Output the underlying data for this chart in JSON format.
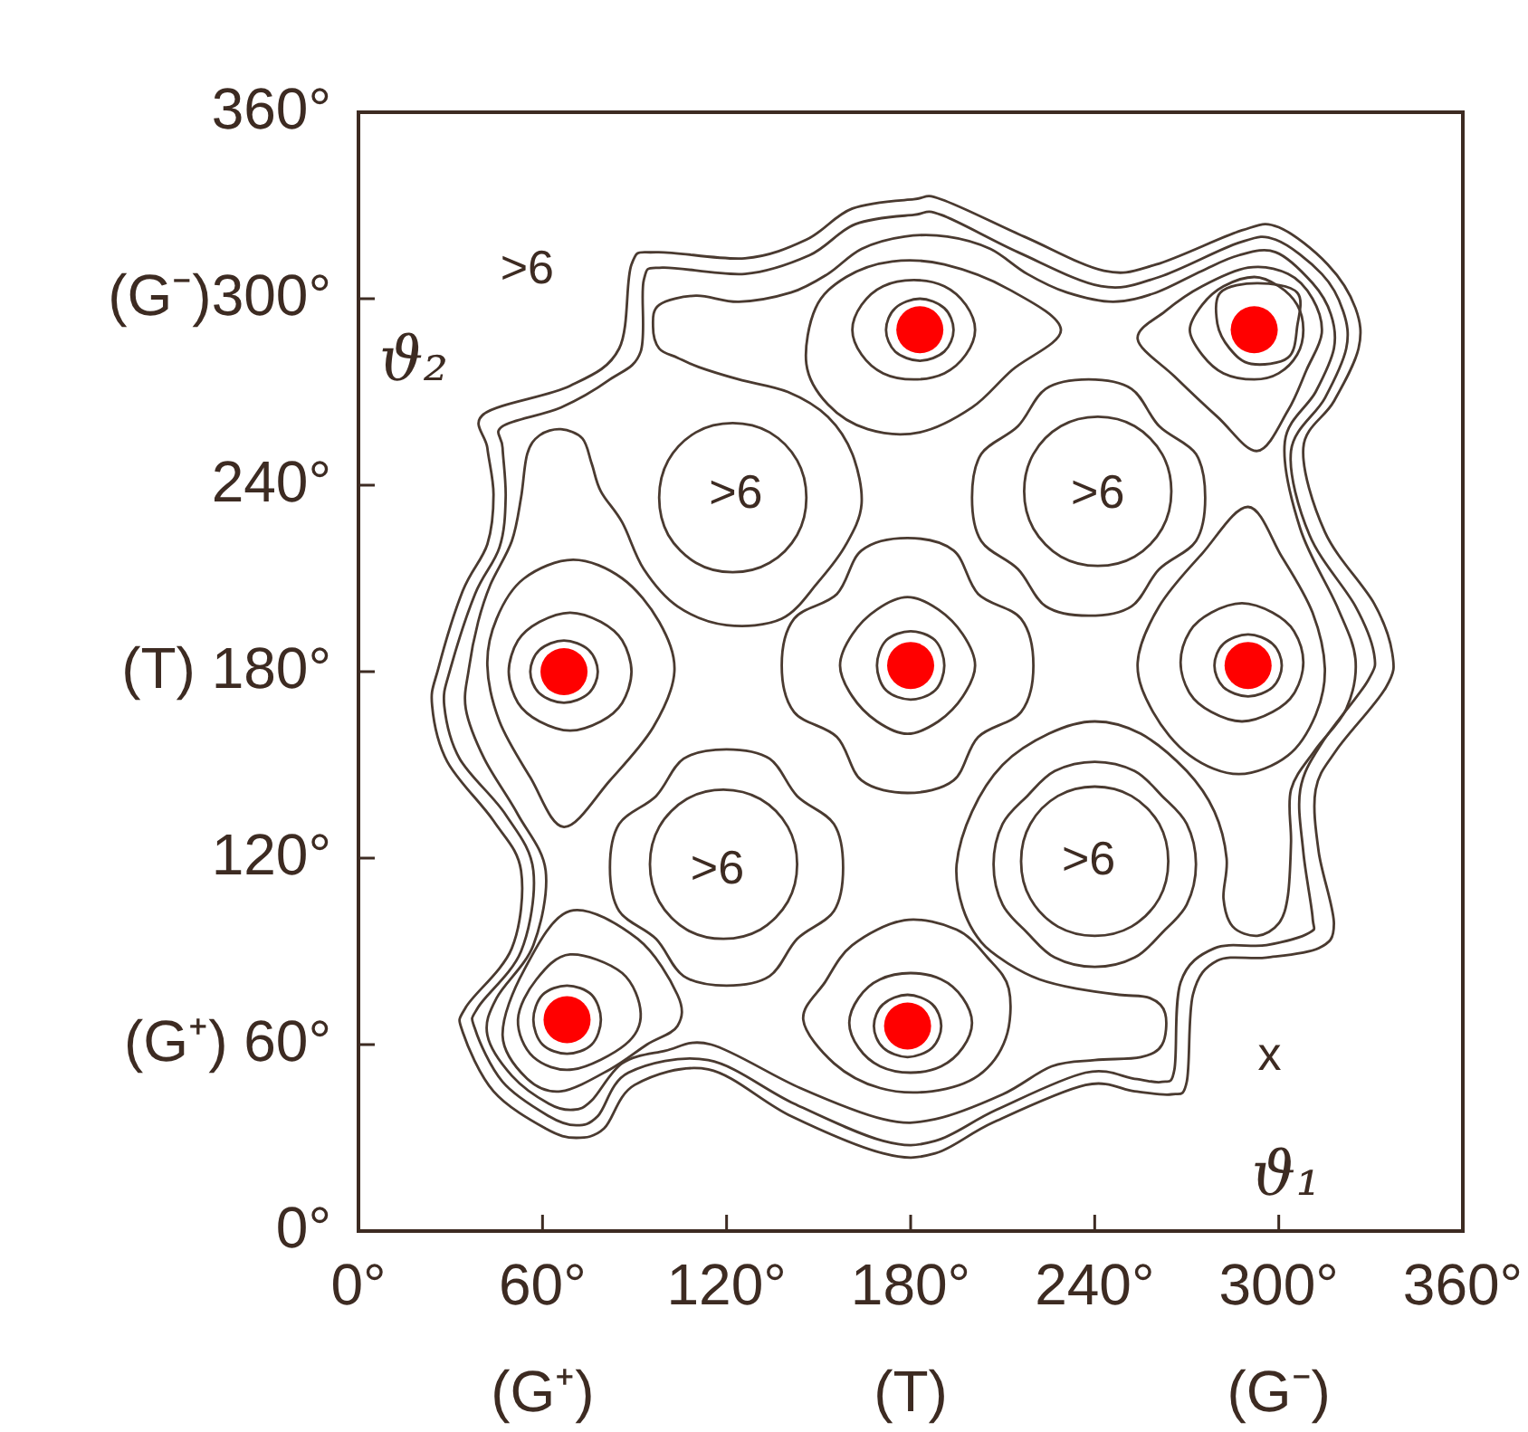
{
  "chart_data": {
    "type": "scatter",
    "xlabel": "ϑ₁",
    "ylabel": "ϑ₂",
    "xlim": [
      0,
      360
    ],
    "ylim": [
      0,
      360
    ],
    "xticks": [
      {
        "value": 0,
        "label": "0°"
      },
      {
        "value": 60,
        "label": "60°\n(G⁺)"
      },
      {
        "value": 120,
        "label": "120°"
      },
      {
        "value": 180,
        "label": "180°\n(T)"
      },
      {
        "value": 240,
        "label": "240°"
      },
      {
        "value": 300,
        "label": "300°\n(G⁻)"
      },
      {
        "value": 360,
        "label": "360°"
      }
    ],
    "yticks": [
      {
        "value": 0,
        "label": "0°"
      },
      {
        "value": 60,
        "label": "(G⁺) 60°"
      },
      {
        "value": 120,
        "label": "120°"
      },
      {
        "value": 180,
        "label": "(T) 180°"
      },
      {
        "value": 240,
        "label": "240°"
      },
      {
        "value": 300,
        "label": "(G⁻)300°"
      },
      {
        "value": 360,
        "label": "360°"
      }
    ],
    "grid": false,
    "legend": false,
    "marker": "circle",
    "annotations": [
      ">6",
      ">6",
      ">6",
      ">6",
      ">6",
      "x"
    ],
    "series": [
      {
        "color": "#ff0000",
        "x": [
          68,
          179,
          67,
          180,
          290,
          183,
          292
        ],
        "values": [
          68,
          66,
          180,
          182,
          182,
          290,
          290
        ]
      }
    ]
  }
}
